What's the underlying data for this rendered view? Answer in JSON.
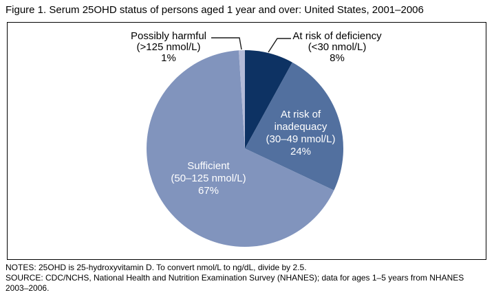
{
  "chart_data": {
    "type": "pie",
    "title": "Figure 1. Serum 25OHD status of persons aged 1 year and over: United States, 2001–2006",
    "categories": [
      "At risk of deficiency (<30 nmol/L)",
      "At risk of inadequacy (30–49 nmol/L)",
      "Sufficient (50–125 nmol/L)",
      "Possibly harmful (>125 nmol/L)"
    ],
    "values": [
      8,
      24,
      67,
      1
    ],
    "start_angle_deg": 0,
    "direction": "clockwise",
    "legend_position": "labels-on-chart",
    "slices": [
      {
        "name": "At risk of deficiency",
        "range": "<30 nmol/L",
        "value": 8,
        "pct": "8%",
        "color": "#0d3263",
        "label_placement": "outside-right",
        "display_lines": [
          "At risk of deficiency",
          "(<30 nmol/L)",
          "8%"
        ]
      },
      {
        "name": "At risk of inadequacy",
        "range": "30–49 nmol/L",
        "value": 24,
        "pct": "24%",
        "color": "#52709f",
        "label_placement": "inside",
        "display_lines": [
          "At risk of",
          "inadequacy",
          "(30–49 nmol/L)",
          "24%"
        ]
      },
      {
        "name": "Sufficient",
        "range": "50–125 nmol/L",
        "value": 67,
        "pct": "67%",
        "color": "#8194bd",
        "label_placement": "inside",
        "display_lines": [
          "Sufficient",
          "(50–125 nmol/L)",
          "67%"
        ]
      },
      {
        "name": "Possibly harmful",
        "range": ">125 nmol/L",
        "value": 1,
        "pct": "1%",
        "color": "#b3bbd8",
        "label_placement": "outside-left",
        "display_lines": [
          "Possibly harmful",
          "(>125 nmol/L)",
          "1%"
        ]
      }
    ]
  },
  "notes": {
    "notes_line": "NOTES: 25OHD is 25-hydroxyvitamin D. To convert nmol/L to ng/dL, divide by 2.5.",
    "source_line": "SOURCE: CDC/NCHS, National Health and Nutrition Examination Survey (NHANES); data for ages 1–5 years from NHANES 2003–2006."
  }
}
